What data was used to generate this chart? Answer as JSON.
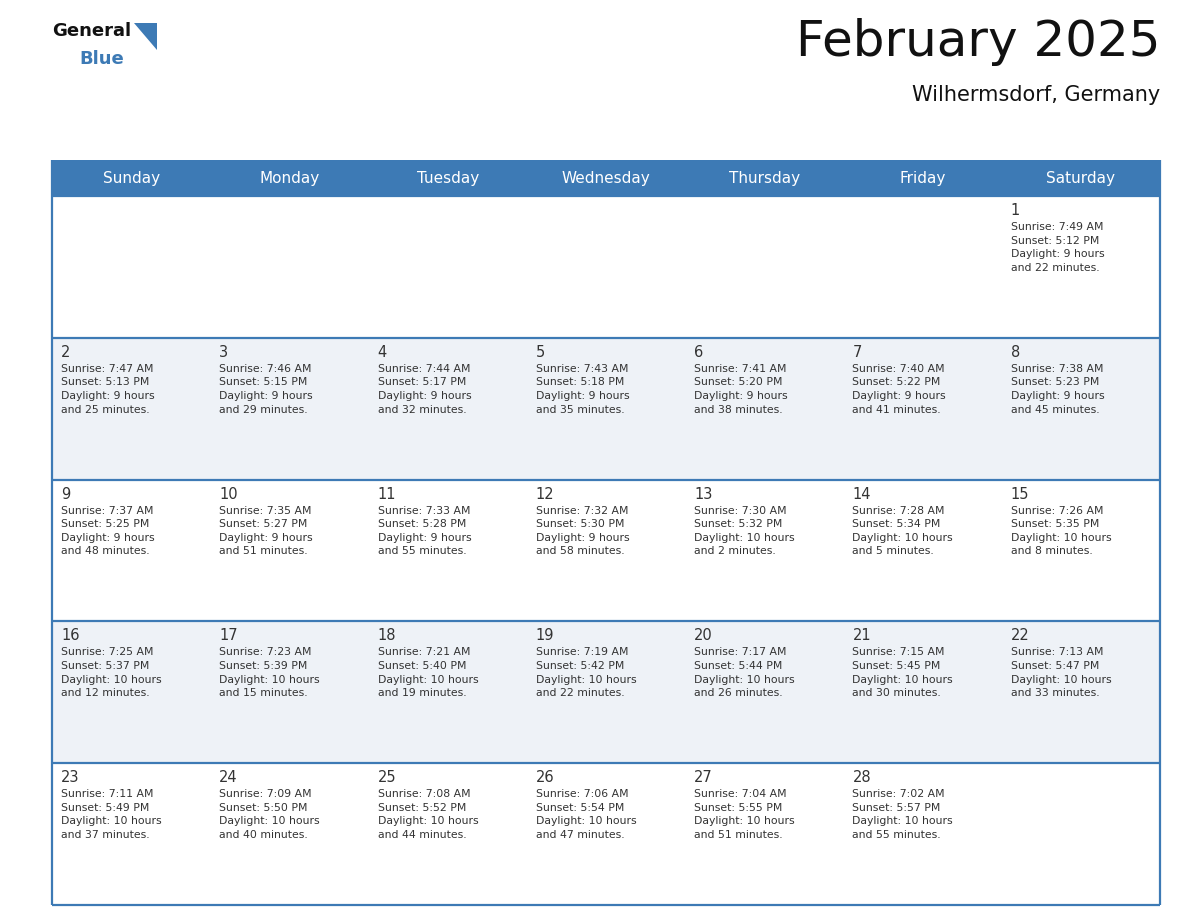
{
  "title": "February 2025",
  "subtitle": "Wilhermsdorf, Germany",
  "header_bg_color": "#3d7ab5",
  "header_text_color": "#ffffff",
  "border_color": "#3d7ab5",
  "text_color": "#333333",
  "day_number_color": "#333333",
  "row_bg_even": "#ffffff",
  "row_bg_odd": "#eef2f7",
  "days_of_week": [
    "Sunday",
    "Monday",
    "Tuesday",
    "Wednesday",
    "Thursday",
    "Friday",
    "Saturday"
  ],
  "calendar_data": [
    [
      {
        "day": null,
        "info": ""
      },
      {
        "day": null,
        "info": ""
      },
      {
        "day": null,
        "info": ""
      },
      {
        "day": null,
        "info": ""
      },
      {
        "day": null,
        "info": ""
      },
      {
        "day": null,
        "info": ""
      },
      {
        "day": 1,
        "info": "Sunrise: 7:49 AM\nSunset: 5:12 PM\nDaylight: 9 hours\nand 22 minutes."
      }
    ],
    [
      {
        "day": 2,
        "info": "Sunrise: 7:47 AM\nSunset: 5:13 PM\nDaylight: 9 hours\nand 25 minutes."
      },
      {
        "day": 3,
        "info": "Sunrise: 7:46 AM\nSunset: 5:15 PM\nDaylight: 9 hours\nand 29 minutes."
      },
      {
        "day": 4,
        "info": "Sunrise: 7:44 AM\nSunset: 5:17 PM\nDaylight: 9 hours\nand 32 minutes."
      },
      {
        "day": 5,
        "info": "Sunrise: 7:43 AM\nSunset: 5:18 PM\nDaylight: 9 hours\nand 35 minutes."
      },
      {
        "day": 6,
        "info": "Sunrise: 7:41 AM\nSunset: 5:20 PM\nDaylight: 9 hours\nand 38 minutes."
      },
      {
        "day": 7,
        "info": "Sunrise: 7:40 AM\nSunset: 5:22 PM\nDaylight: 9 hours\nand 41 minutes."
      },
      {
        "day": 8,
        "info": "Sunrise: 7:38 AM\nSunset: 5:23 PM\nDaylight: 9 hours\nand 45 minutes."
      }
    ],
    [
      {
        "day": 9,
        "info": "Sunrise: 7:37 AM\nSunset: 5:25 PM\nDaylight: 9 hours\nand 48 minutes."
      },
      {
        "day": 10,
        "info": "Sunrise: 7:35 AM\nSunset: 5:27 PM\nDaylight: 9 hours\nand 51 minutes."
      },
      {
        "day": 11,
        "info": "Sunrise: 7:33 AM\nSunset: 5:28 PM\nDaylight: 9 hours\nand 55 minutes."
      },
      {
        "day": 12,
        "info": "Sunrise: 7:32 AM\nSunset: 5:30 PM\nDaylight: 9 hours\nand 58 minutes."
      },
      {
        "day": 13,
        "info": "Sunrise: 7:30 AM\nSunset: 5:32 PM\nDaylight: 10 hours\nand 2 minutes."
      },
      {
        "day": 14,
        "info": "Sunrise: 7:28 AM\nSunset: 5:34 PM\nDaylight: 10 hours\nand 5 minutes."
      },
      {
        "day": 15,
        "info": "Sunrise: 7:26 AM\nSunset: 5:35 PM\nDaylight: 10 hours\nand 8 minutes."
      }
    ],
    [
      {
        "day": 16,
        "info": "Sunrise: 7:25 AM\nSunset: 5:37 PM\nDaylight: 10 hours\nand 12 minutes."
      },
      {
        "day": 17,
        "info": "Sunrise: 7:23 AM\nSunset: 5:39 PM\nDaylight: 10 hours\nand 15 minutes."
      },
      {
        "day": 18,
        "info": "Sunrise: 7:21 AM\nSunset: 5:40 PM\nDaylight: 10 hours\nand 19 minutes."
      },
      {
        "day": 19,
        "info": "Sunrise: 7:19 AM\nSunset: 5:42 PM\nDaylight: 10 hours\nand 22 minutes."
      },
      {
        "day": 20,
        "info": "Sunrise: 7:17 AM\nSunset: 5:44 PM\nDaylight: 10 hours\nand 26 minutes."
      },
      {
        "day": 21,
        "info": "Sunrise: 7:15 AM\nSunset: 5:45 PM\nDaylight: 10 hours\nand 30 minutes."
      },
      {
        "day": 22,
        "info": "Sunrise: 7:13 AM\nSunset: 5:47 PM\nDaylight: 10 hours\nand 33 minutes."
      }
    ],
    [
      {
        "day": 23,
        "info": "Sunrise: 7:11 AM\nSunset: 5:49 PM\nDaylight: 10 hours\nand 37 minutes."
      },
      {
        "day": 24,
        "info": "Sunrise: 7:09 AM\nSunset: 5:50 PM\nDaylight: 10 hours\nand 40 minutes."
      },
      {
        "day": 25,
        "info": "Sunrise: 7:08 AM\nSunset: 5:52 PM\nDaylight: 10 hours\nand 44 minutes."
      },
      {
        "day": 26,
        "info": "Sunrise: 7:06 AM\nSunset: 5:54 PM\nDaylight: 10 hours\nand 47 minutes."
      },
      {
        "day": 27,
        "info": "Sunrise: 7:04 AM\nSunset: 5:55 PM\nDaylight: 10 hours\nand 51 minutes."
      },
      {
        "day": 28,
        "info": "Sunrise: 7:02 AM\nSunset: 5:57 PM\nDaylight: 10 hours\nand 55 minutes."
      },
      {
        "day": null,
        "info": ""
      }
    ]
  ]
}
